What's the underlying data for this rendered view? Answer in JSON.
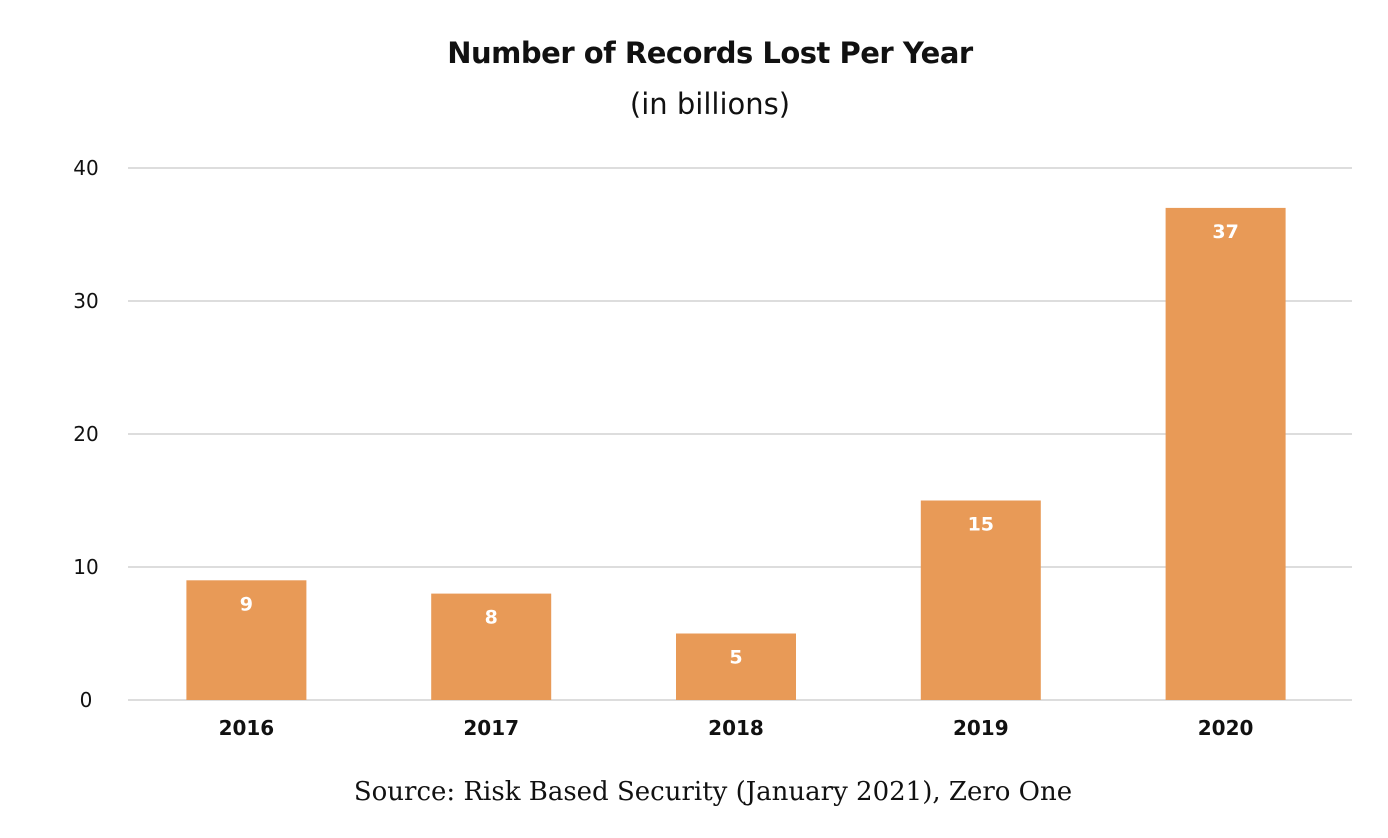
{
  "chart_data": {
    "type": "bar",
    "title": "Number of Records Lost Per Year",
    "subtitle": "(in billions)",
    "categories": [
      "2016",
      "2017",
      "2018",
      "2019",
      "2020"
    ],
    "values": [
      9,
      8,
      5,
      15,
      37
    ],
    "data_labels": [
      "9",
      "8",
      "5",
      "15",
      "37"
    ],
    "ylim": [
      0,
      40
    ],
    "yticks": [
      0,
      10,
      20,
      30,
      40
    ],
    "ytick_labels": [
      "0",
      "10",
      "20",
      "30",
      "40"
    ],
    "grid": true,
    "legend": "none",
    "bar_color": "#E89A57",
    "gridline_color": "#DDDDDD",
    "data_label_color": "#FFFFFF",
    "source": "Source: Risk Based Security (January 2021), Zero One"
  }
}
